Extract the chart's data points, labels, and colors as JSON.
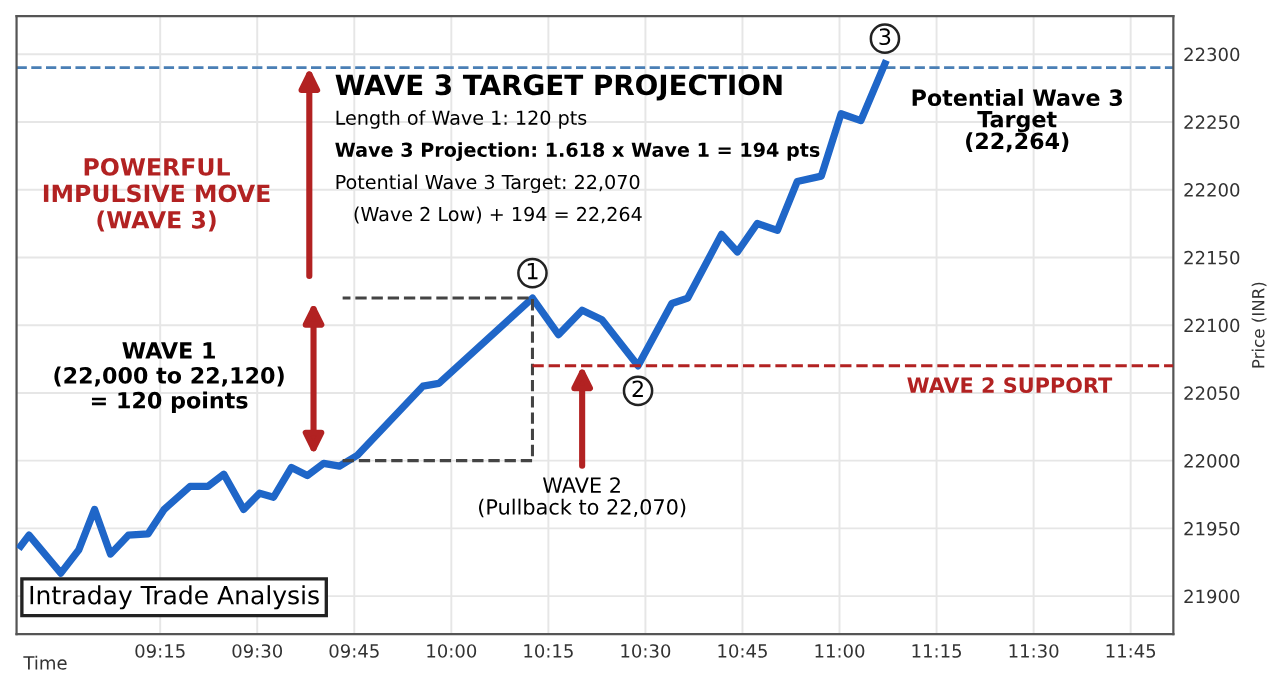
{
  "chart_data": {
    "type": "line",
    "title": "Intraday Trade Analysis",
    "xlabel": "Time",
    "ylabel": "Price (INR)",
    "xlim": [
      8.88,
      11.86
    ],
    "ylim": [
      21872,
      22328
    ],
    "xticks": [
      {
        "value": 9.25,
        "label": "09:15"
      },
      {
        "value": 9.5,
        "label": "09:30"
      },
      {
        "value": 9.75,
        "label": "09:45"
      },
      {
        "value": 10.0,
        "label": "10:00"
      },
      {
        "value": 10.25,
        "label": "10:15"
      },
      {
        "value": 10.5,
        "label": "10:30"
      },
      {
        "value": 10.75,
        "label": "10:45"
      },
      {
        "value": 11.0,
        "label": "11:00"
      },
      {
        "value": 11.25,
        "label": "11:15"
      },
      {
        "value": 11.5,
        "label": "11:30"
      },
      {
        "value": 11.75,
        "label": "11:45"
      }
    ],
    "yticks": [
      21900,
      21950,
      22000,
      22050,
      22100,
      22150,
      22200,
      22250,
      22300
    ],
    "grid": true,
    "series": [
      {
        "type": "line",
        "color": "#1f66c8",
        "line_style": "solid",
        "x": [
          8.891,
          8.912,
          8.994,
          9.04,
          9.081,
          9.122,
          9.168,
          9.219,
          9.26,
          9.327,
          9.373,
          9.414,
          9.465,
          9.506,
          9.542,
          9.588,
          9.629,
          9.671,
          9.712,
          9.758,
          9.927,
          9.968,
          10.209,
          10.276,
          10.337,
          10.388,
          10.481,
          10.517,
          10.568,
          10.609,
          10.696,
          10.737,
          10.788,
          10.84,
          10.891,
          10.953,
          11.004,
          11.055,
          11.117
        ],
        "values": [
          21937,
          21945,
          21917,
          21934,
          21964,
          21931,
          21945,
          21946,
          21964,
          21981,
          21981,
          21990,
          21964,
          21976,
          21973,
          21995,
          21989,
          21998,
          21996,
          22004,
          22055,
          22057,
          22120,
          22093,
          22111,
          22104,
          22070,
          22089,
          22116,
          22120,
          22167,
          22154,
          22175,
          22170,
          22206,
          22210,
          22256,
          22251,
          22293
        ]
      },
      {
        "type": "line",
        "color": "#444444",
        "line_style": "dashed",
        "x": [
          9.72,
          10.209,
          10.209,
          9.72
        ],
        "values": [
          22000,
          22000,
          22120,
          22120
        ]
      },
      {
        "type": "line",
        "name": "WAVE 2 SUPPORT",
        "color": "#b22222",
        "line_style": "dashed",
        "x": [
          10.209,
          11.86
        ],
        "values": [
          22070,
          22070
        ]
      }
    ],
    "ref_lines": [
      {
        "axis": "y",
        "value": 22290,
        "color": "#4a7fb5",
        "line_style": "dashed"
      }
    ],
    "annotations": [
      "WAVE 3 TARGET PROJECTION\nLength of Wave 1: 120 pts\nWave 3 Projection: 1.618 x Wave 1 = 194 pts\nPotential Wave 3 Target: 22,070\n(Wave 2 Low) + 194 = 22,264",
      "POWERFUL\nIMPULSIVE MOVE\n(WAVE 3)",
      {
        "text": "WAVE 1\n(22,000 to 22,120)\n= 120 points",
        "x": 9.645,
        "y": 22000
      },
      {
        "text": "WAVE 2\n(Pullback to 22,070)",
        "x": 10.337,
        "y": 22070
      },
      "Potential Wave 3\nTarget\n(22,264)",
      {
        "text": "1",
        "x": 10.209,
        "y": 22120
      },
      {
        "text": "2",
        "x": 10.481,
        "y": 22070
      },
      {
        "text": "3",
        "x": 11.117,
        "y": 22293
      }
    ]
  }
}
